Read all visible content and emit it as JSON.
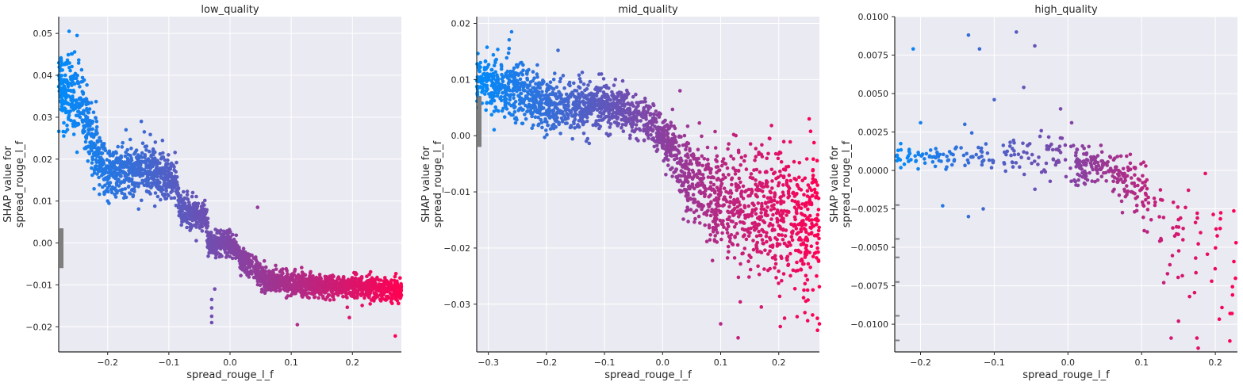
{
  "chart_data": [
    {
      "type": "scatter",
      "title": "low_quality",
      "xlabel": "spread_rouge_l_f",
      "ylabel": [
        "SHAP value for",
        "spread_rouge_l_f"
      ],
      "xlim": [
        -0.28,
        0.28
      ],
      "ylim": [
        -0.026,
        0.054
      ],
      "xticks": [
        -0.2,
        -0.1,
        0.0,
        0.1,
        0.2
      ],
      "xtick_labels": [
        "−0.2",
        "−0.1",
        "0.0",
        "0.1",
        "0.2"
      ],
      "yticks": [
        -0.02,
        -0.01,
        0.0,
        0.01,
        0.02,
        0.03,
        0.04,
        0.05
      ],
      "ytick_labels": [
        "−0.02",
        "−0.01",
        "0.00",
        "0.01",
        "0.02",
        "0.03",
        "0.04",
        "0.05"
      ],
      "grid": true,
      "colormap": [
        "#008bfb",
        "#ff0052"
      ],
      "trend": [
        [
          -0.28,
          0.038
        ],
        [
          -0.245,
          0.034
        ],
        [
          -0.225,
          0.024
        ],
        [
          -0.2,
          0.017
        ],
        [
          -0.12,
          0.017
        ],
        [
          -0.09,
          0.015
        ],
        [
          -0.08,
          0.008
        ],
        [
          -0.04,
          0.006
        ],
        [
          -0.035,
          0.0
        ],
        [
          0.0,
          0.0
        ],
        [
          0.02,
          -0.004
        ],
        [
          0.04,
          -0.006
        ],
        [
          0.06,
          -0.009
        ],
        [
          0.12,
          -0.01
        ],
        [
          0.28,
          -0.011
        ]
      ],
      "spread": [
        [
          -0.28,
          0.005
        ],
        [
          -0.24,
          0.004
        ],
        [
          -0.2,
          0.003
        ],
        [
          -0.12,
          0.003
        ],
        [
          -0.08,
          0.002
        ],
        [
          0.0,
          0.0015
        ],
        [
          0.06,
          0.0014
        ],
        [
          0.28,
          0.0014
        ]
      ],
      "outliers": [
        [
          -0.263,
          0.0505
        ],
        [
          -0.25,
          0.0495
        ],
        [
          -0.145,
          0.029
        ],
        [
          -0.17,
          0.027
        ],
        [
          -0.2,
          0.01
        ],
        [
          -0.03,
          -0.0135
        ],
        [
          -0.03,
          -0.0155
        ],
        [
          -0.03,
          -0.0175
        ],
        [
          -0.03,
          -0.019
        ],
        [
          0.11,
          -0.0195
        ],
        [
          0.27,
          -0.0222
        ],
        [
          0.195,
          -0.0178
        ],
        [
          0.045,
          0.0085
        ],
        [
          -0.025,
          -0.011
        ]
      ],
      "count": 2600,
      "margin_ticks": [
        [
          -0.006,
          0.0035
        ]
      ]
    },
    {
      "type": "scatter",
      "title": "mid_quality",
      "xlabel": "spread_rouge_l_f",
      "ylabel": [
        "SHAP value for",
        "spread_rouge_l_f"
      ],
      "xlim": [
        -0.32,
        0.27
      ],
      "ylim": [
        -0.0385,
        0.0212
      ],
      "xticks": [
        -0.3,
        -0.2,
        -0.1,
        0.0,
        0.1,
        0.2
      ],
      "xtick_labels": [
        "−0.3",
        "−0.2",
        "−0.1",
        "0.0",
        "0.1",
        "0.2"
      ],
      "yticks": [
        -0.03,
        -0.02,
        -0.01,
        0.0,
        0.01,
        0.02
      ],
      "ytick_labels": [
        "−0.03",
        "−0.02",
        "−0.01",
        "0.00",
        "0.01",
        "0.02"
      ],
      "grid": true,
      "colormap": [
        "#008bfb",
        "#ff0052"
      ],
      "trend": [
        [
          -0.32,
          0.01
        ],
        [
          -0.24,
          0.008
        ],
        [
          -0.2,
          0.005
        ],
        [
          -0.1,
          0.0055
        ],
        [
          -0.05,
          0.004
        ],
        [
          -0.02,
          0.002
        ],
        [
          0.0,
          0.0
        ],
        [
          0.02,
          -0.003
        ],
        [
          0.04,
          -0.007
        ],
        [
          0.08,
          -0.011
        ],
        [
          0.2,
          -0.014
        ],
        [
          0.27,
          -0.016
        ]
      ],
      "spread": [
        [
          -0.32,
          0.0025
        ],
        [
          -0.2,
          0.0025
        ],
        [
          -0.1,
          0.002
        ],
        [
          0.0,
          0.0018
        ],
        [
          0.03,
          0.003
        ],
        [
          0.08,
          0.005
        ],
        [
          0.27,
          0.007
        ]
      ],
      "outliers": [
        [
          -0.26,
          0.0185
        ],
        [
          -0.18,
          0.0152
        ],
        [
          -0.305,
          0.0132
        ],
        [
          0.1,
          -0.0335
        ],
        [
          0.13,
          -0.036
        ],
        [
          0.27,
          -0.0335
        ],
        [
          0.245,
          -0.0315
        ],
        [
          0.21,
          -0.0325
        ],
        [
          0.17,
          -0.0305
        ],
        [
          0.03,
          0.008
        ]
      ],
      "count": 2200,
      "margin_ticks": [
        [
          -0.002,
          0.007
        ]
      ]
    },
    {
      "type": "scatter",
      "title": "high_quality",
      "xlabel": "spread_rouge_l_f",
      "ylabel": [
        "SHAP value for",
        "spread_rouge_l_f"
      ],
      "xlim": [
        -0.235,
        0.23
      ],
      "ylim": [
        -0.0118,
        0.01
      ],
      "xticks": [
        -0.2,
        -0.1,
        0.0,
        0.1,
        0.2
      ],
      "xtick_labels": [
        "−0.2",
        "−0.1",
        "0.0",
        "0.1",
        "0.2"
      ],
      "yticks": [
        -0.01,
        -0.0075,
        -0.005,
        -0.0025,
        0.0,
        0.0025,
        0.005,
        0.0075,
        0.01
      ],
      "ytick_labels": [
        "−0.0100",
        "−0.0075",
        "−0.0050",
        "−0.0025",
        "0.0000",
        "0.0025",
        "0.0050",
        "0.0075",
        "0.0100"
      ],
      "grid": true,
      "colormap": [
        "#008bfb",
        "#ff0052"
      ],
      "trend": [
        [
          -0.235,
          0.0009
        ],
        [
          -0.1,
          0.0009
        ],
        [
          -0.05,
          0.001
        ],
        [
          0.0,
          0.0008
        ],
        [
          0.01,
          0.0003
        ],
        [
          0.065,
          0.0002
        ],
        [
          0.075,
          -0.0008
        ],
        [
          0.1,
          -0.001
        ],
        [
          0.13,
          -0.003
        ],
        [
          0.2,
          -0.006
        ],
        [
          0.23,
          -0.008
        ]
      ],
      "spread": [
        [
          -0.235,
          0.0004
        ],
        [
          -0.1,
          0.0005
        ],
        [
          0.0,
          0.0008
        ],
        [
          0.06,
          0.0006
        ],
        [
          0.08,
          0.001
        ],
        [
          0.23,
          0.003
        ]
      ],
      "outliers": [
        [
          -0.21,
          0.0079
        ],
        [
          -0.135,
          0.0088
        ],
        [
          -0.12,
          0.0079
        ],
        [
          -0.07,
          0.009
        ],
        [
          -0.045,
          0.0081
        ],
        [
          -0.06,
          0.0054
        ],
        [
          -0.1,
          0.0046
        ],
        [
          -0.17,
          -0.0023
        ],
        [
          -0.135,
          -0.003
        ],
        [
          -0.115,
          -0.0025
        ],
        [
          0.15,
          -0.0098
        ],
        [
          0.175,
          -0.0109
        ],
        [
          0.22,
          -0.0093
        ],
        [
          0.14,
          -0.0109
        ],
        [
          -0.2,
          0.0031
        ],
        [
          -0.14,
          0.003
        ],
        [
          -0.01,
          0.004
        ],
        [
          0.005,
          0.0031
        ],
        [
          0.165,
          -0.0082
        ],
        [
          0.195,
          -0.0072
        ],
        [
          0.13,
          -0.0073
        ]
      ],
      "count": 420,
      "margin_ticks": [
        [
          -0.0012,
          -0.0022
        ],
        [
          -0.0036,
          -0.0044
        ],
        [
          -0.0052,
          -0.0056
        ],
        [
          -0.0066,
          -0.0072
        ],
        [
          -0.0088,
          -0.0094
        ],
        [
          -0.0105,
          -0.011
        ]
      ]
    }
  ]
}
